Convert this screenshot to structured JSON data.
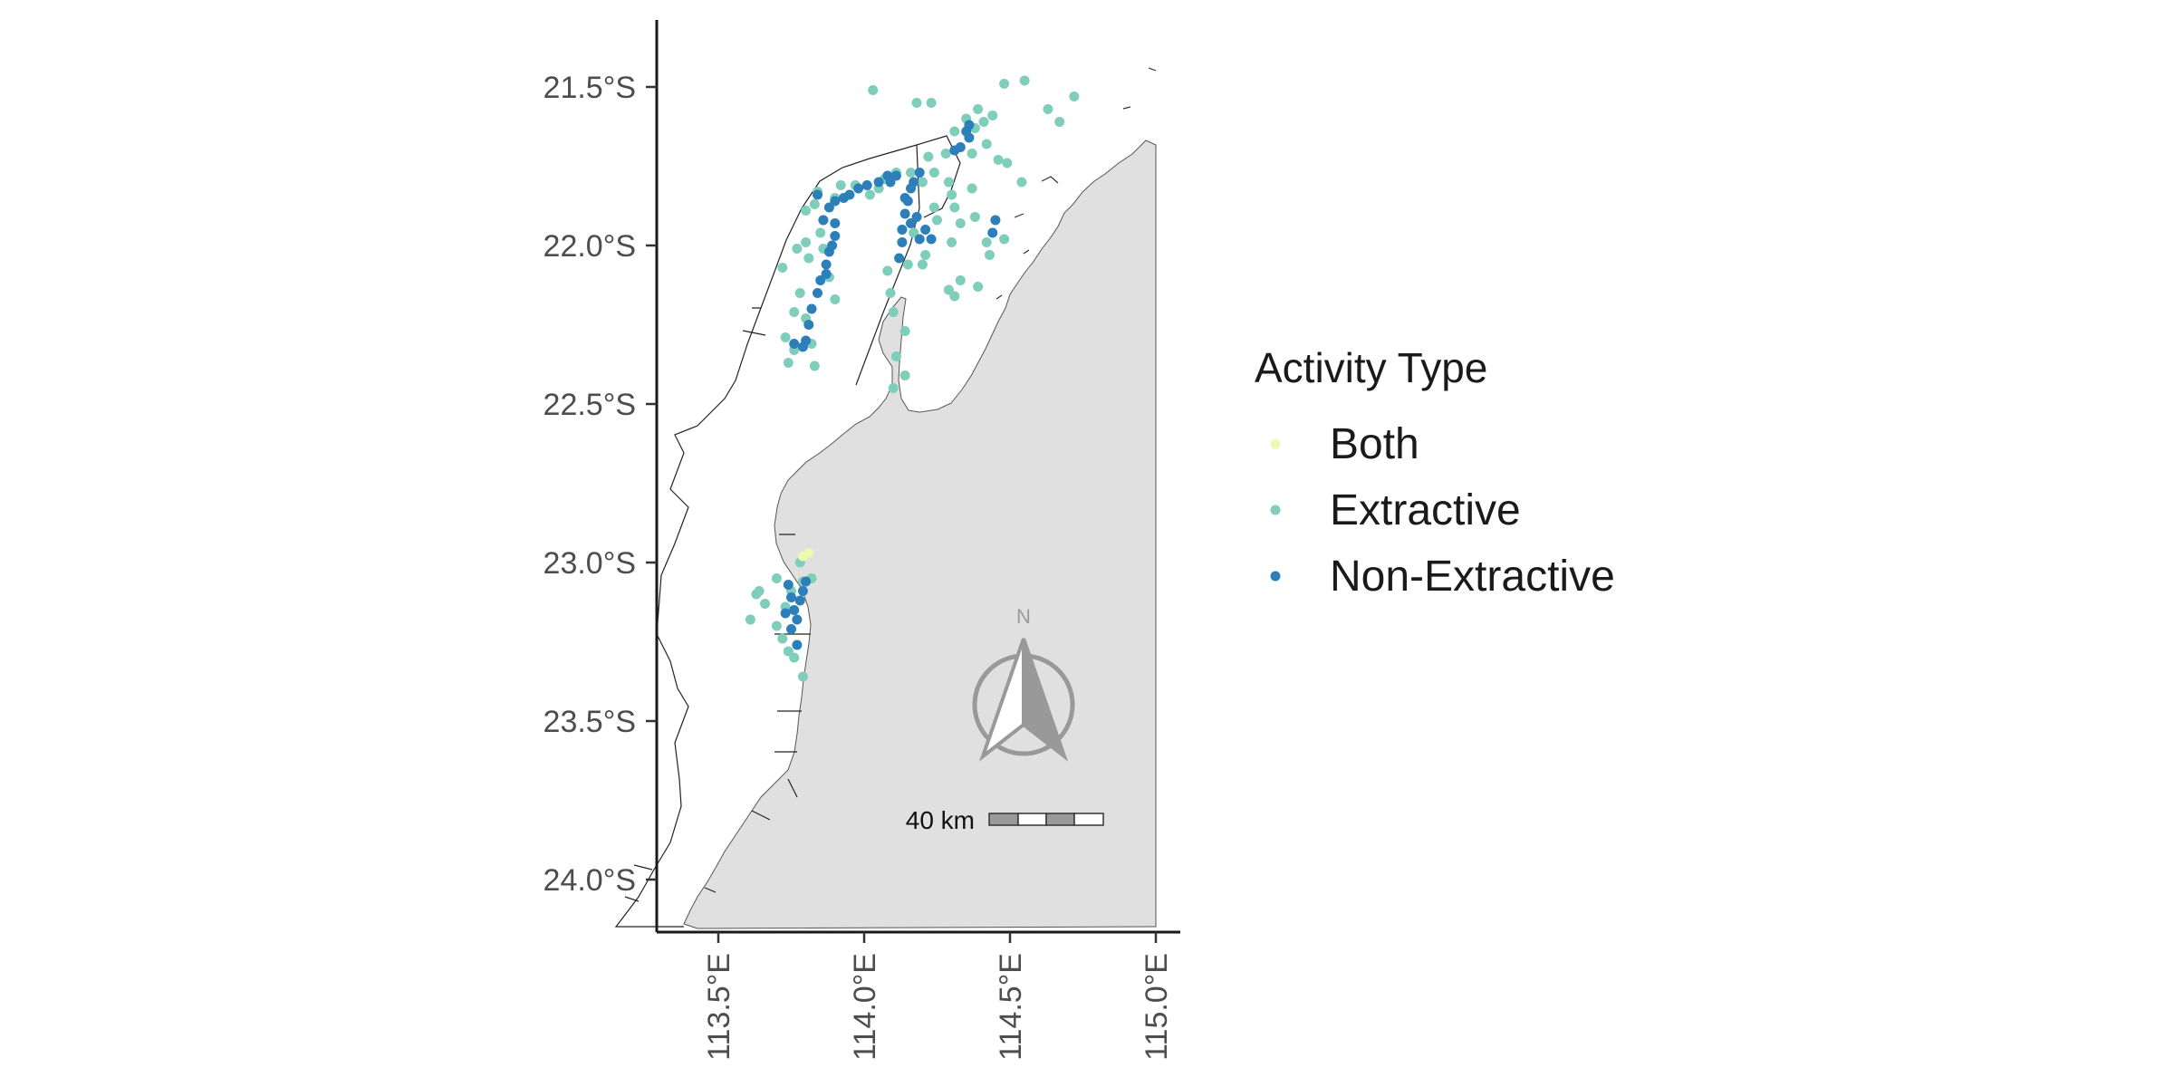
{
  "chart_data": {
    "type": "scatter",
    "title": "",
    "xlabel": "",
    "ylabel": "",
    "xlim": [
      113.2,
      115.08
    ],
    "ylim": [
      -24.17,
      -21.3
    ],
    "x_ticks": [
      {
        "value": 113.5,
        "label": "113.5°E"
      },
      {
        "value": 114.0,
        "label": "114.0°E"
      },
      {
        "value": 114.5,
        "label": "114.5°E"
      },
      {
        "value": 115.0,
        "label": "115.0°E"
      }
    ],
    "y_ticks": [
      {
        "value": -21.5,
        "label": "21.5°S"
      },
      {
        "value": -22.0,
        "label": "22.0°S"
      },
      {
        "value": -22.5,
        "label": "22.5°S"
      },
      {
        "value": -23.0,
        "label": "23.0°S"
      },
      {
        "value": -23.5,
        "label": "23.5°S"
      },
      {
        "value": -24.0,
        "label": "24.0°S"
      }
    ],
    "grid": false,
    "legend": {
      "title": "Activity Type",
      "position": "right",
      "entries": [
        {
          "name": "Both",
          "color": "#edf8b1"
        },
        {
          "name": "Extractive",
          "color": "#7fcdbb"
        },
        {
          "name": "Non-Extractive",
          "color": "#2c7fb8"
        }
      ]
    },
    "land_color": "#e0e0e0",
    "outline_color": "#333333",
    "north_arrow": {
      "label": "N",
      "color": "#999999"
    },
    "scale_bar": {
      "label": "40 km"
    },
    "series": [
      {
        "name": "Extractive",
        "color": "#7fcdbb",
        "points": [
          [
            114.03,
            -21.51
          ],
          [
            114.18,
            -21.55
          ],
          [
            114.23,
            -21.55
          ],
          [
            114.39,
            -21.57
          ],
          [
            114.44,
            -21.59
          ],
          [
            114.48,
            -21.49
          ],
          [
            114.55,
            -21.48
          ],
          [
            114.63,
            -21.57
          ],
          [
            114.72,
            -21.53
          ],
          [
            114.67,
            -21.61
          ],
          [
            114.41,
            -21.61
          ],
          [
            114.35,
            -21.6
          ],
          [
            114.31,
            -21.64
          ],
          [
            114.38,
            -21.63
          ],
          [
            114.28,
            -21.71
          ],
          [
            114.22,
            -21.72
          ],
          [
            114.24,
            -21.77
          ],
          [
            114.29,
            -21.8
          ],
          [
            114.37,
            -21.71
          ],
          [
            114.46,
            -21.73
          ],
          [
            114.42,
            -21.68
          ],
          [
            114.54,
            -21.8
          ],
          [
            114.49,
            -21.74
          ],
          [
            114.37,
            -21.82
          ],
          [
            114.3,
            -21.84
          ],
          [
            114.31,
            -21.88
          ],
          [
            114.33,
            -21.93
          ],
          [
            114.3,
            -21.99
          ],
          [
            114.38,
            -21.91
          ],
          [
            114.42,
            -21.99
          ],
          [
            114.43,
            -22.03
          ],
          [
            114.39,
            -22.13
          ],
          [
            114.33,
            -22.11
          ],
          [
            114.29,
            -22.14
          ],
          [
            114.48,
            -21.98
          ],
          [
            114.31,
            -22.16
          ],
          [
            113.72,
            -22.07
          ],
          [
            113.77,
            -22.01
          ],
          [
            113.8,
            -21.99
          ],
          [
            113.81,
            -22.04
          ],
          [
            113.85,
            -21.96
          ],
          [
            113.83,
            -21.87
          ],
          [
            113.84,
            -21.83
          ],
          [
            113.8,
            -21.89
          ],
          [
            113.86,
            -21.92
          ],
          [
            113.9,
            -21.85
          ],
          [
            113.92,
            -21.81
          ],
          [
            113.97,
            -21.81
          ],
          [
            114.02,
            -21.84
          ],
          [
            114.05,
            -21.82
          ],
          [
            114.07,
            -21.79
          ],
          [
            114.11,
            -21.77
          ],
          [
            114.16,
            -21.77
          ],
          [
            114.2,
            -21.8
          ],
          [
            114.24,
            -21.88
          ],
          [
            114.25,
            -21.92
          ],
          [
            114.21,
            -22.03
          ],
          [
            114.2,
            -22.06
          ],
          [
            114.15,
            -22.06
          ],
          [
            114.17,
            -21.96
          ],
          [
            114.08,
            -22.08
          ],
          [
            114.09,
            -22.15
          ],
          [
            114.1,
            -22.21
          ],
          [
            114.14,
            -22.27
          ],
          [
            114.14,
            -22.41
          ],
          [
            114.1,
            -22.45
          ],
          [
            113.76,
            -22.21
          ],
          [
            113.73,
            -22.29
          ],
          [
            113.76,
            -22.33
          ],
          [
            113.83,
            -22.38
          ],
          [
            113.74,
            -22.37
          ],
          [
            113.8,
            -22.23
          ],
          [
            113.82,
            -22.31
          ],
          [
            113.88,
            -22.1
          ],
          [
            113.9,
            -22.17
          ],
          [
            113.78,
            -22.15
          ],
          [
            113.86,
            -22.01
          ],
          [
            114.11,
            -22.35
          ],
          [
            113.61,
            -23.18
          ],
          [
            113.63,
            -23.1
          ],
          [
            113.66,
            -23.13
          ],
          [
            113.7,
            -23.05
          ],
          [
            113.73,
            -23.14
          ],
          [
            113.7,
            -23.2
          ],
          [
            113.72,
            -23.24
          ],
          [
            113.74,
            -23.28
          ],
          [
            113.76,
            -23.3
          ],
          [
            113.79,
            -23.36
          ],
          [
            113.79,
            -23.06
          ],
          [
            113.82,
            -23.05
          ],
          [
            113.78,
            -23.0
          ],
          [
            113.75,
            -23.09
          ],
          [
            113.64,
            -23.09
          ]
        ]
      },
      {
        "name": "Both",
        "color": "#edf8b1",
        "points": [
          [
            113.79,
            -22.98
          ],
          [
            113.81,
            -22.97
          ]
        ]
      },
      {
        "name": "Non-Extractive",
        "color": "#2c7fb8",
        "points": [
          [
            113.84,
            -21.84
          ],
          [
            113.86,
            -21.92
          ],
          [
            113.88,
            -21.88
          ],
          [
            113.9,
            -21.86
          ],
          [
            113.93,
            -21.85
          ],
          [
            113.95,
            -21.84
          ],
          [
            113.98,
            -21.82
          ],
          [
            114.01,
            -21.81
          ],
          [
            114.05,
            -21.8
          ],
          [
            114.08,
            -21.78
          ],
          [
            114.11,
            -21.78
          ],
          [
            113.9,
            -21.93
          ],
          [
            113.9,
            -21.97
          ],
          [
            113.88,
            -22.02
          ],
          [
            113.87,
            -22.06
          ],
          [
            113.85,
            -22.11
          ],
          [
            113.84,
            -22.15
          ],
          [
            113.82,
            -22.2
          ],
          [
            113.81,
            -22.25
          ],
          [
            113.8,
            -22.3
          ],
          [
            113.79,
            -22.32
          ],
          [
            113.76,
            -22.31
          ],
          [
            113.89,
            -22.0
          ],
          [
            113.87,
            -22.09
          ],
          [
            114.13,
            -21.95
          ],
          [
            114.14,
            -21.9
          ],
          [
            114.15,
            -21.86
          ],
          [
            114.16,
            -21.82
          ],
          [
            114.17,
            -21.8
          ],
          [
            114.13,
            -21.99
          ],
          [
            114.12,
            -22.04
          ],
          [
            114.19,
            -21.98
          ],
          [
            114.23,
            -21.98
          ],
          [
            114.21,
            -21.95
          ],
          [
            114.16,
            -21.93
          ],
          [
            114.18,
            -21.91
          ],
          [
            114.14,
            -21.85
          ],
          [
            114.09,
            -21.8
          ],
          [
            114.36,
            -21.62
          ],
          [
            114.36,
            -21.66
          ],
          [
            114.33,
            -21.69
          ],
          [
            114.31,
            -21.7
          ],
          [
            114.35,
            -21.64
          ],
          [
            114.45,
            -21.92
          ],
          [
            114.44,
            -21.96
          ],
          [
            114.19,
            -21.77
          ],
          [
            113.74,
            -23.07
          ],
          [
            113.75,
            -23.11
          ],
          [
            113.76,
            -23.15
          ],
          [
            113.77,
            -23.18
          ],
          [
            113.75,
            -23.21
          ],
          [
            113.77,
            -23.26
          ],
          [
            113.78,
            -23.12
          ],
          [
            113.73,
            -23.16
          ],
          [
            113.79,
            -23.09
          ],
          [
            113.8,
            -23.06
          ]
        ]
      }
    ]
  }
}
